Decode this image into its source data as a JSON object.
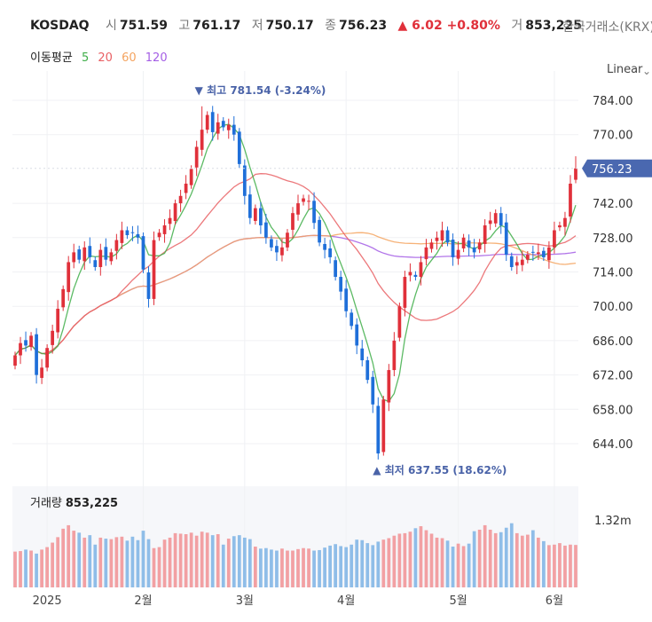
{
  "header": {
    "ticker": "KOSDAQ",
    "open_label": "시",
    "open": "751.59",
    "high_label": "고",
    "high": "761.17",
    "low_label": "저",
    "low": "750.17",
    "close_label": "종",
    "close": "756.23",
    "change": "▲ 6.02 +0.80%",
    "volume_label": "거",
    "volume": "853,225",
    "exchange": "한국거래소(KRX)"
  },
  "ma_legend": {
    "label": "이동평균",
    "items": [
      {
        "label": "5",
        "color": "#3fae49"
      },
      {
        "label": "20",
        "color": "#e96064"
      },
      {
        "label": "60",
        "color": "#f4a460"
      },
      {
        "label": "120",
        "color": "#a45ee5"
      }
    ]
  },
  "scale_mode": "Linear",
  "colors": {
    "up": "#e0303a",
    "down": "#1f6fd9",
    "vol_up": "#f2a0a3",
    "vol_down": "#8fbde8"
  },
  "chart_data": {
    "type": "candlestick",
    "y_ticks": [
      "784.00",
      "770.00",
      "742.00",
      "728.00",
      "714.00",
      "700.00",
      "686.00",
      "672.00",
      "658.00",
      "644.00"
    ],
    "y_range": [
      634,
      790
    ],
    "current_price": "756.23",
    "x_labels": [
      "2025",
      "2월",
      "3월",
      "4월",
      "5월",
      "6월"
    ],
    "x_label_index": [
      6,
      24,
      43,
      62,
      83,
      101
    ],
    "max_annotation": "▼ 최고 781.54 (-3.24%)",
    "max_index": 35,
    "max_value": 781.54,
    "min_annotation": "▲ 최저 637.55 (18.62%)",
    "min_index": 68,
    "min_value": 637.55,
    "volume_label": "거래량",
    "volume_current": "853,225",
    "volume_tick": "1.32m",
    "volume_tick_value": 1320000,
    "closes": [
      680,
      685,
      684,
      688,
      672,
      675,
      683,
      690,
      699,
      707,
      718,
      722,
      719,
      724,
      720,
      716,
      723,
      719,
      722,
      727,
      731,
      729,
      730,
      728,
      715,
      703,
      727,
      730,
      733,
      736,
      742,
      745,
      750,
      756,
      765,
      772,
      778,
      771,
      775,
      773,
      774,
      770,
      758,
      745,
      736,
      740,
      733,
      728,
      724,
      722,
      724,
      730,
      738,
      742,
      744,
      743,
      734,
      726,
      723,
      720,
      712,
      706,
      698,
      692,
      684,
      678,
      670,
      660,
      640,
      662,
      674,
      686,
      700,
      712,
      714,
      712,
      718,
      724,
      726,
      728,
      731,
      726,
      720,
      723,
      728,
      724,
      722,
      726,
      733,
      735,
      738,
      733,
      721,
      716,
      718,
      719,
      721,
      722,
      722,
      720,
      724,
      731,
      733,
      736,
      750,
      756.23
    ],
    "volume": [
      720000,
      730000,
      760000,
      740000,
      680000,
      760000,
      810000,
      900000,
      1010000,
      1180000,
      1250000,
      1140000,
      1100000,
      1000000,
      1050000,
      860000,
      1000000,
      980000,
      970000,
      1010000,
      1020000,
      940000,
      1020000,
      950000,
      1140000,
      970000,
      790000,
      810000,
      960000,
      1000000,
      1090000,
      1080000,
      1070000,
      1100000,
      1040000,
      1120000,
      1100000,
      1050000,
      1070000,
      860000,
      980000,
      1030000,
      1050000,
      1000000,
      970000,
      820000,
      780000,
      790000,
      760000,
      740000,
      780000,
      740000,
      740000,
      770000,
      790000,
      780000,
      740000,
      750000,
      800000,
      840000,
      870000,
      830000,
      810000,
      860000,
      960000,
      950000,
      890000,
      850000,
      920000,
      960000,
      990000,
      1040000,
      1080000,
      1090000,
      1120000,
      1190000,
      1230000,
      1150000,
      1080000,
      1000000,
      990000,
      940000,
      820000,
      880000,
      830000,
      880000,
      1130000,
      1160000,
      1250000,
      1160000,
      1090000,
      1110000,
      1200000,
      1290000,
      1090000,
      1040000,
      1060000,
      1150000,
      1000000,
      930000,
      850000,
      860000,
      890000,
      840000,
      860000,
      853225
    ]
  }
}
